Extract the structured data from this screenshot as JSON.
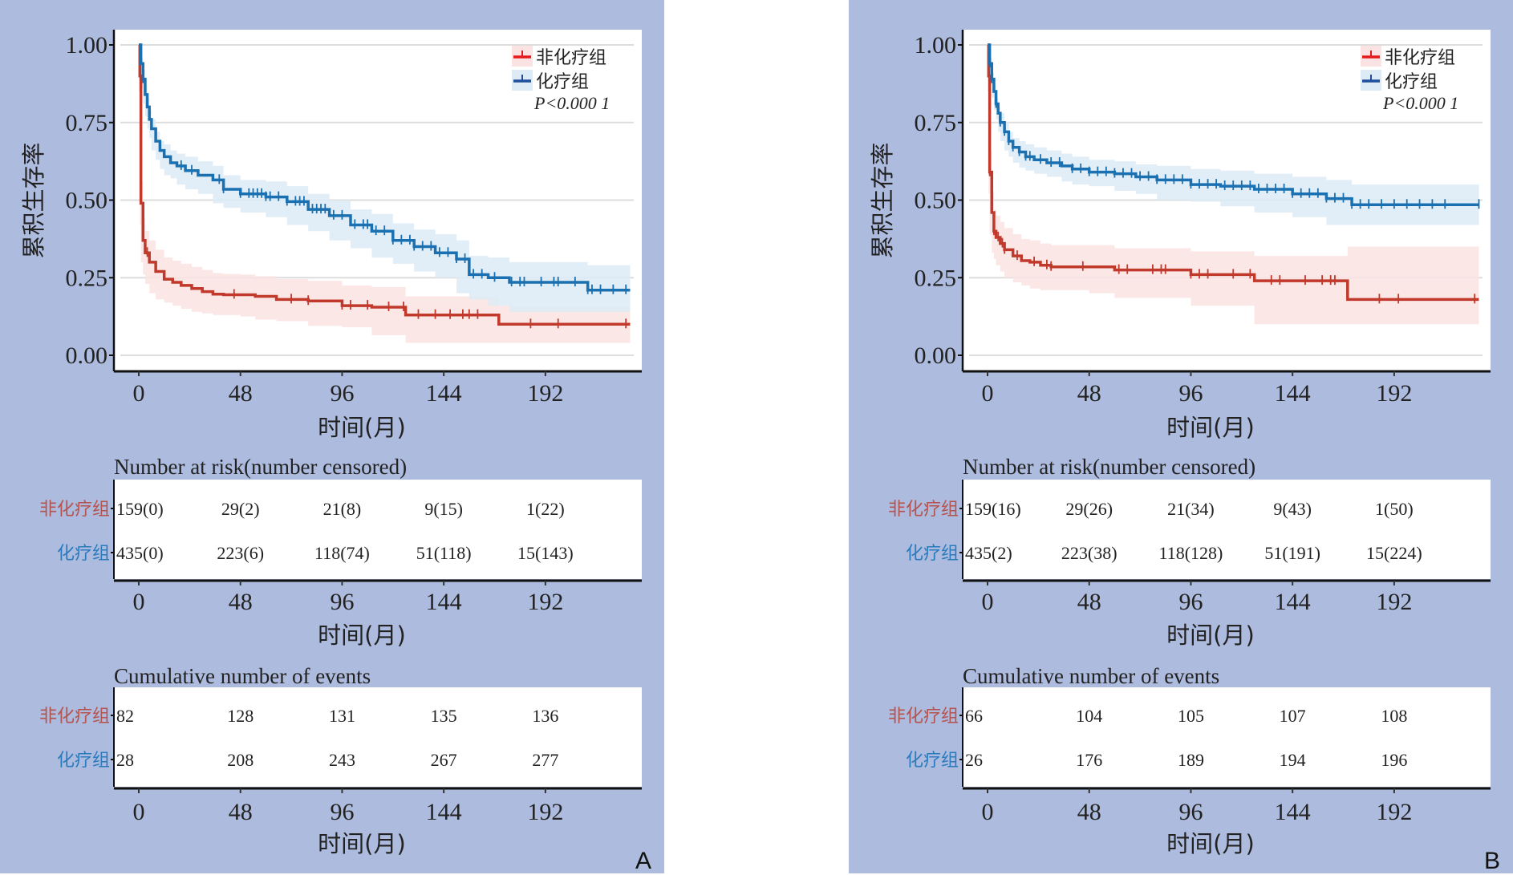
{
  "colors": {
    "background": "#adbbde",
    "non_chemo_line": "#c0392b",
    "non_chemo_band": "#fbe3e3",
    "non_chemo_legend": "#e41a1c",
    "chemo_line": "#1a70b0",
    "chemo_band": "#dcebf6",
    "chemo_legend": "#1f4e9a",
    "non_chemo_label": "#b5534e",
    "chemo_label": "#2a7bbd",
    "grid": "#dddddd"
  },
  "chart_data": [
    {
      "type": "line",
      "panel_letter": "A",
      "title": "",
      "xlabel": "时间(月)",
      "ylabel": "累积生存率",
      "xlim": [
        -9,
        246
      ],
      "ylim": [
        -0.02,
        1.05
      ],
      "x_ticks": [
        0,
        48,
        96,
        144,
        192
      ],
      "y_ticks": [
        "0.00",
        "0.25",
        "0.50",
        "0.75",
        "1.00"
      ],
      "grid": true,
      "legend_position": "top-right",
      "p_value_label": "P<0.000 1",
      "series": [
        {
          "name": "非化疗组",
          "key": "non_chemo",
          "x": [
            0,
            0.5,
            1,
            2,
            3,
            5,
            8,
            12,
            16,
            20,
            25,
            30,
            35,
            40,
            48,
            55,
            65,
            80,
            96,
            110,
            126,
            170,
            232
          ],
          "y": [
            1.0,
            0.9,
            0.49,
            0.37,
            0.33,
            0.3,
            0.27,
            0.245,
            0.235,
            0.225,
            0.215,
            0.205,
            0.197,
            0.195,
            0.195,
            0.19,
            0.18,
            0.175,
            0.16,
            0.155,
            0.13,
            0.1,
            0.1
          ],
          "lower": [
            1.0,
            0.85,
            0.42,
            0.3,
            0.26,
            0.23,
            0.2,
            0.18,
            0.17,
            0.16,
            0.15,
            0.14,
            0.135,
            0.13,
            0.13,
            0.125,
            0.115,
            0.11,
            0.095,
            0.09,
            0.065,
            0.04,
            0.04
          ],
          "upper": [
            1.0,
            0.95,
            0.56,
            0.44,
            0.4,
            0.37,
            0.34,
            0.315,
            0.305,
            0.295,
            0.285,
            0.275,
            0.265,
            0.262,
            0.26,
            0.255,
            0.245,
            0.24,
            0.225,
            0.22,
            0.19,
            0.16,
            0.16
          ],
          "censor_x": [
            4,
            45,
            72,
            80,
            96,
            100,
            108,
            118,
            125,
            132,
            140,
            147,
            153,
            156,
            160,
            185,
            198,
            230
          ]
        },
        {
          "name": "化疗组",
          "key": "chemo",
          "x": [
            0,
            1,
            2,
            3,
            4,
            5,
            6,
            8,
            10,
            12,
            15,
            18,
            22,
            28,
            35,
            40,
            48,
            60,
            70,
            80,
            90,
            100,
            110,
            120,
            130,
            140,
            150,
            156,
            165,
            175,
            212,
            232
          ],
          "y": [
            1.0,
            0.94,
            0.89,
            0.84,
            0.8,
            0.76,
            0.73,
            0.69,
            0.66,
            0.64,
            0.62,
            0.61,
            0.595,
            0.58,
            0.565,
            0.535,
            0.52,
            0.51,
            0.495,
            0.47,
            0.45,
            0.42,
            0.4,
            0.37,
            0.35,
            0.33,
            0.31,
            0.26,
            0.25,
            0.235,
            0.21,
            0.21
          ],
          "lower": [
            1.0,
            0.92,
            0.86,
            0.81,
            0.77,
            0.73,
            0.7,
            0.66,
            0.63,
            0.6,
            0.58,
            0.57,
            0.55,
            0.535,
            0.52,
            0.49,
            0.475,
            0.46,
            0.445,
            0.42,
            0.4,
            0.37,
            0.345,
            0.315,
            0.295,
            0.27,
            0.25,
            0.2,
            0.18,
            0.16,
            0.14,
            0.14
          ],
          "upper": [
            1.0,
            0.96,
            0.92,
            0.87,
            0.83,
            0.79,
            0.76,
            0.72,
            0.69,
            0.68,
            0.66,
            0.65,
            0.64,
            0.625,
            0.61,
            0.58,
            0.565,
            0.56,
            0.545,
            0.52,
            0.5,
            0.47,
            0.455,
            0.425,
            0.405,
            0.39,
            0.37,
            0.32,
            0.315,
            0.3,
            0.29,
            0.29
          ],
          "censor_x": [
            2,
            20,
            25,
            38,
            40,
            48,
            52,
            54,
            56,
            58,
            60,
            62,
            66,
            70,
            74,
            76,
            78,
            82,
            84,
            86,
            88,
            92,
            96,
            102,
            106,
            108,
            112,
            116,
            120,
            124,
            128,
            130,
            134,
            138,
            142,
            146,
            150,
            154,
            158,
            162,
            168,
            176,
            180,
            182,
            190,
            196,
            198,
            206,
            212,
            214,
            218,
            224,
            230
          ]
        }
      ],
      "risk_table": {
        "title": "Number at risk(number censored)",
        "rows": [
          {
            "label": "非化疗组",
            "key": "non_chemo",
            "values": [
              "159(0)",
              "29(2)",
              "21(8)",
              "9(15)",
              "1(22)"
            ]
          },
          {
            "label": "化疗组",
            "key": "chemo",
            "values": [
              "435(0)",
              "223(6)",
              "118(74)",
              "51(118)",
              "15(143)"
            ]
          }
        ]
      },
      "events_table": {
        "title": "Cumulative number of events",
        "rows": [
          {
            "label": "非化疗组",
            "key": "non_chemo",
            "values": [
              "82",
              "128",
              "131",
              "135",
              "136"
            ]
          },
          {
            "label": "化疗组",
            "key": "chemo",
            "values": [
              "28",
              "208",
              "243",
              "267",
              "277"
            ]
          }
        ]
      }
    },
    {
      "type": "line",
      "panel_letter": "B",
      "title": "",
      "xlabel": "时间(月)",
      "ylabel": "累积生存率",
      "xlim": [
        -9,
        246
      ],
      "ylim": [
        -0.02,
        1.05
      ],
      "x_ticks": [
        0,
        48,
        96,
        144,
        192
      ],
      "y_ticks": [
        "0.00",
        "0.25",
        "0.50",
        "0.75",
        "1.00"
      ],
      "grid": true,
      "legend_position": "top-right",
      "p_value_label": "P<0.000 1",
      "series": [
        {
          "name": "非化疗组",
          "key": "non_chemo",
          "x": [
            0,
            0.5,
            1,
            2,
            3,
            4,
            6,
            8,
            12,
            16,
            20,
            25,
            30,
            48,
            60,
            96,
            126,
            170,
            232
          ],
          "y": [
            1.0,
            0.9,
            0.59,
            0.46,
            0.4,
            0.38,
            0.36,
            0.34,
            0.32,
            0.305,
            0.3,
            0.29,
            0.285,
            0.285,
            0.275,
            0.26,
            0.24,
            0.18,
            0.18
          ],
          "lower": [
            1.0,
            0.85,
            0.52,
            0.39,
            0.33,
            0.31,
            0.29,
            0.27,
            0.25,
            0.235,
            0.225,
            0.215,
            0.21,
            0.21,
            0.2,
            0.185,
            0.16,
            0.1,
            0.1
          ],
          "upper": [
            1.0,
            0.95,
            0.66,
            0.53,
            0.47,
            0.45,
            0.43,
            0.41,
            0.39,
            0.375,
            0.37,
            0.36,
            0.355,
            0.355,
            0.345,
            0.335,
            0.32,
            0.35,
            0.35
          ],
          "censor_x": [
            1,
            3,
            5,
            7,
            8,
            14,
            22,
            28,
            30,
            45,
            62,
            66,
            78,
            82,
            84,
            96,
            100,
            104,
            116,
            124,
            134,
            138,
            150,
            158,
            162,
            164,
            185,
            194,
            230
          ]
        },
        {
          "name": "化疗组",
          "key": "chemo",
          "x": [
            0,
            1,
            2,
            3,
            4,
            5,
            6,
            8,
            10,
            12,
            15,
            18,
            22,
            28,
            35,
            40,
            48,
            60,
            70,
            80,
            96,
            110,
            126,
            144,
            160,
            172,
            232
          ],
          "y": [
            1.0,
            0.94,
            0.89,
            0.85,
            0.81,
            0.78,
            0.75,
            0.72,
            0.69,
            0.67,
            0.655,
            0.64,
            0.63,
            0.62,
            0.61,
            0.6,
            0.59,
            0.585,
            0.575,
            0.565,
            0.55,
            0.545,
            0.535,
            0.52,
            0.505,
            0.485,
            0.485
          ],
          "lower": [
            1.0,
            0.92,
            0.87,
            0.83,
            0.79,
            0.76,
            0.72,
            0.69,
            0.66,
            0.64,
            0.62,
            0.605,
            0.595,
            0.585,
            0.575,
            0.56,
            0.55,
            0.545,
            0.53,
            0.52,
            0.5,
            0.495,
            0.48,
            0.46,
            0.445,
            0.42,
            0.42
          ],
          "upper": [
            1.0,
            0.96,
            0.91,
            0.87,
            0.83,
            0.8,
            0.78,
            0.75,
            0.72,
            0.7,
            0.69,
            0.68,
            0.67,
            0.66,
            0.65,
            0.64,
            0.63,
            0.625,
            0.615,
            0.61,
            0.6,
            0.595,
            0.585,
            0.575,
            0.565,
            0.55,
            0.55
          ],
          "censor_x": [
            1,
            2,
            4,
            6,
            8,
            10,
            12,
            15,
            18,
            20,
            25,
            30,
            34,
            40,
            44,
            48,
            52,
            56,
            60,
            64,
            68,
            72,
            76,
            80,
            84,
            88,
            92,
            96,
            100,
            104,
            108,
            112,
            116,
            120,
            124,
            128,
            132,
            136,
            140,
            144,
            148,
            152,
            156,
            160,
            164,
            168,
            172,
            176,
            180,
            186,
            192,
            198,
            204,
            210,
            216,
            232
          ]
        }
      ],
      "risk_table": {
        "title": "Number at risk(number censored)",
        "rows": [
          {
            "label": "非化疗组",
            "key": "non_chemo",
            "values": [
              "159(16)",
              "29(26)",
              "21(34)",
              "9(43)",
              "1(50)"
            ]
          },
          {
            "label": "化疗组",
            "key": "chemo",
            "values": [
              "435(2)",
              "223(38)",
              "118(128)",
              "51(191)",
              "15(224)"
            ]
          }
        ]
      },
      "events_table": {
        "title": "Cumulative number of events",
        "rows": [
          {
            "label": "非化疗组",
            "key": "non_chemo",
            "values": [
              "66",
              "104",
              "105",
              "107",
              "108"
            ]
          },
          {
            "label": "化疗组",
            "key": "chemo",
            "values": [
              "26",
              "176",
              "189",
              "194",
              "196"
            ]
          }
        ]
      }
    }
  ]
}
